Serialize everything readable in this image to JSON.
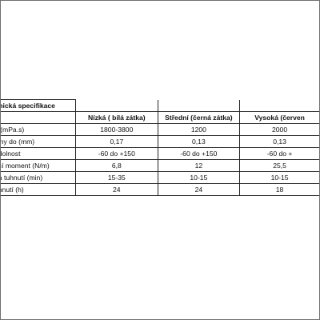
{
  "table": {
    "title": "hnická specifikace",
    "header_first_col": ":",
    "columns": [
      "Nízká ( bílá zátka)",
      "Střední (černá zátka)",
      "Vysoká (červen"
    ],
    "rows": [
      {
        "label": "a (mPa.s)",
        "values": [
          "1800-3800",
          "1200",
          "2000"
        ]
      },
      {
        "label": "piny do (mm)",
        "values": [
          "0,17",
          "0,13",
          "0,13"
        ]
      },
      {
        "label": "odolnost",
        "values": [
          "-60 do +150",
          "-60 do +150",
          "-60 do +"
        ]
      },
      {
        "label": "ací moment (N/m)",
        "values": [
          "6,8",
          "12",
          "25,5"
        ]
      },
      {
        "label": "ba tuhnutí (min)",
        "values": [
          "15-35",
          "10-15",
          "10-15"
        ]
      },
      {
        "label": "uhnutí  (h)",
        "values": [
          "24",
          "24",
          "18"
        ]
      }
    ]
  }
}
